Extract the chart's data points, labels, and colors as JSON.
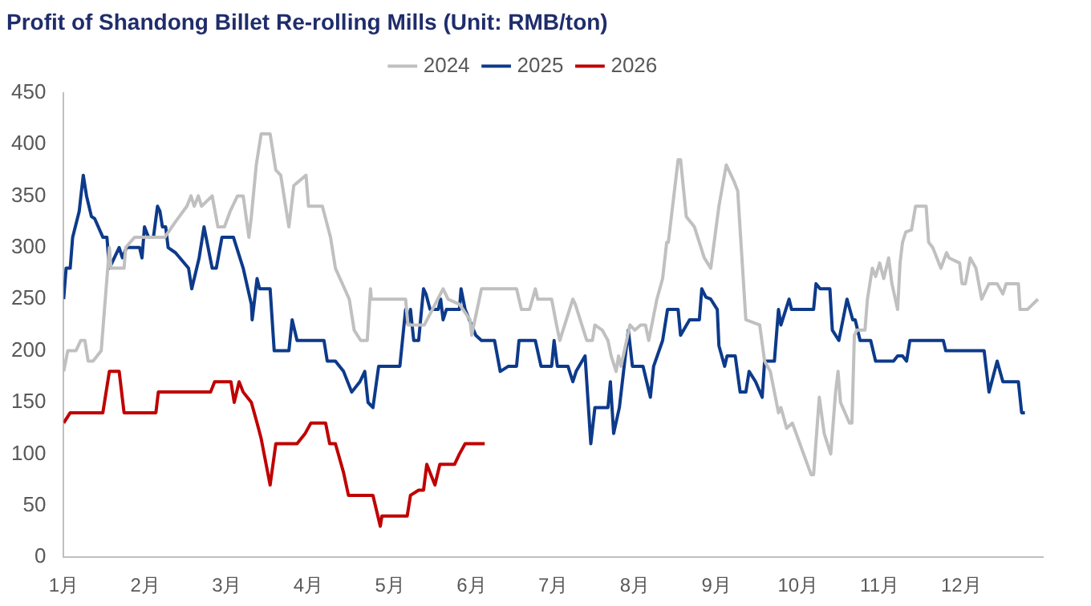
{
  "chart_data": {
    "type": "line",
    "title": "Profit of Shandong Billet Re-rolling Mills (Unit: RMB/ton)",
    "xlim": [
      1,
      13
    ],
    "xticks": [
      {
        "value": 1,
        "label": "1月"
      },
      {
        "value": 2,
        "label": "2月"
      },
      {
        "value": 3,
        "label": "3月"
      },
      {
        "value": 4,
        "label": "4月"
      },
      {
        "value": 5,
        "label": "5月"
      },
      {
        "value": 6,
        "label": "6月"
      },
      {
        "value": 7,
        "label": "7月"
      },
      {
        "value": 8,
        "label": "8月"
      },
      {
        "value": 9,
        "label": "9月"
      },
      {
        "value": 10,
        "label": "10月"
      },
      {
        "value": 11,
        "label": "11月"
      },
      {
        "value": 12,
        "label": "12月"
      }
    ],
    "ylim": [
      0,
      450
    ],
    "yticks": [
      0,
      50,
      100,
      150,
      200,
      250,
      300,
      350,
      400,
      450
    ],
    "grid": false,
    "legend": "top",
    "marker": "none",
    "line_style": "solid",
    "series": [
      {
        "name": "2024",
        "color": "#c0c0c0",
        "x": [
          1.0,
          1.05,
          1.15,
          1.21,
          1.26,
          1.3,
          1.36,
          1.46,
          1.51,
          1.56,
          1.58,
          1.74,
          1.76,
          1.87,
          2.11,
          2.24,
          2.37,
          2.51,
          2.56,
          2.6,
          2.65,
          2.69,
          2.82,
          2.89,
          2.97,
          3.04,
          3.13,
          3.2,
          3.27,
          3.3,
          3.36,
          3.42,
          3.53,
          3.6,
          3.66,
          3.76,
          3.82,
          3.97,
          4.0,
          4.17,
          4.27,
          4.33,
          4.5,
          4.56,
          4.64,
          4.72,
          4.76,
          4.77,
          5.19,
          5.22,
          5.42,
          5.65,
          5.71,
          5.85,
          5.98,
          6.0,
          6.12,
          6.55,
          6.61,
          6.71,
          6.78,
          6.81,
          6.98,
          7.04,
          7.08,
          7.24,
          7.27,
          7.41,
          7.48,
          7.51,
          7.6,
          7.67,
          7.71,
          7.77,
          7.8,
          7.83,
          7.94,
          8.0,
          8.07,
          8.13,
          8.17,
          8.27,
          8.34,
          8.39,
          8.41,
          8.53,
          8.56,
          8.63,
          8.73,
          8.85,
          8.93,
          9.03,
          9.12,
          9.15,
          9.21,
          9.26,
          9.36,
          9.53,
          9.59,
          9.66,
          9.76,
          9.79,
          9.86,
          9.93,
          10.16,
          10.19,
          10.26,
          10.32,
          10.4,
          10.46,
          10.49,
          10.52,
          10.63,
          10.66,
          10.69,
          10.72,
          10.82,
          10.85,
          10.91,
          10.95,
          11.0,
          11.05,
          11.11,
          11.15,
          11.22,
          11.25,
          11.28,
          11.32,
          11.39,
          11.44,
          11.57,
          11.6,
          11.65,
          11.75,
          11.82,
          11.85,
          11.98,
          12.01,
          12.05,
          12.11,
          12.18,
          12.25,
          12.34,
          12.44,
          12.51,
          12.55,
          12.7,
          12.72,
          12.81,
          12.94
        ],
        "values": [
          180,
          200,
          200,
          210,
          210,
          190,
          190,
          200,
          250,
          300,
          280,
          280,
          300,
          310,
          310,
          310,
          325,
          340,
          350,
          340,
          350,
          340,
          350,
          320,
          320,
          335,
          350,
          350,
          310,
          330,
          380,
          410,
          410,
          375,
          370,
          320,
          360,
          370,
          340,
          340,
          310,
          280,
          250,
          220,
          210,
          210,
          260,
          250,
          250,
          225,
          225,
          260,
          250,
          245,
          230,
          215,
          260,
          260,
          240,
          240,
          260,
          250,
          250,
          225,
          210,
          250,
          245,
          210,
          210,
          225,
          220,
          210,
          195,
          180,
          195,
          185,
          225,
          220,
          225,
          225,
          210,
          250,
          270,
          305,
          305,
          385,
          385,
          330,
          320,
          290,
          280,
          340,
          380,
          375,
          365,
          355,
          230,
          225,
          190,
          180,
          140,
          145,
          125,
          130,
          80,
          80,
          155,
          120,
          100,
          160,
          180,
          150,
          130,
          130,
          215,
          220,
          220,
          250,
          280,
          272,
          285,
          270,
          290,
          265,
          240,
          285,
          305,
          315,
          317,
          340,
          340,
          305,
          300,
          280,
          295,
          290,
          285,
          265,
          265,
          290,
          280,
          250,
          265,
          265,
          255,
          265,
          265,
          240,
          240,
          250
        ]
      },
      {
        "name": "2025",
        "color": "#0d3a8a",
        "x": [
          1.0,
          1.03,
          1.08,
          1.11,
          1.19,
          1.24,
          1.28,
          1.34,
          1.38,
          1.48,
          1.53,
          1.56,
          1.68,
          1.72,
          1.77,
          1.93,
          1.96,
          1.99,
          2.04,
          2.1,
          2.15,
          2.18,
          2.21,
          2.25,
          2.28,
          2.37,
          2.53,
          2.57,
          2.66,
          2.72,
          2.82,
          2.87,
          2.94,
          3.08,
          3.2,
          3.3,
          3.31,
          3.37,
          3.4,
          3.53,
          3.58,
          3.76,
          3.8,
          3.86,
          4.19,
          4.23,
          4.33,
          4.43,
          4.53,
          4.63,
          4.69,
          4.73,
          4.79,
          4.86,
          5.12,
          5.19,
          5.22,
          5.25,
          5.29,
          5.35,
          5.41,
          5.44,
          5.49,
          5.59,
          5.62,
          5.65,
          5.69,
          5.85,
          5.87,
          5.92,
          6.05,
          6.12,
          6.28,
          6.35,
          6.45,
          6.55,
          6.58,
          6.78,
          6.85,
          6.98,
          7.01,
          7.05,
          7.18,
          7.24,
          7.28,
          7.39,
          7.46,
          7.51,
          7.67,
          7.7,
          7.74,
          7.81,
          7.92,
          7.97,
          8.1,
          8.19,
          8.23,
          8.34,
          8.4,
          8.53,
          8.56,
          8.67,
          8.79,
          8.82,
          8.87,
          8.93,
          9.01,
          9.03,
          9.1,
          9.13,
          9.23,
          9.29,
          9.36,
          9.4,
          9.48,
          9.56,
          9.59,
          9.71,
          9.76,
          9.79,
          9.89,
          9.92,
          10.19,
          10.22,
          10.27,
          10.39,
          10.42,
          10.5,
          10.6,
          10.67,
          10.7,
          10.76,
          10.89,
          10.95,
          11.17,
          11.22,
          11.28,
          11.33,
          11.37,
          11.78,
          11.81,
          12.28,
          12.34,
          12.44,
          12.51,
          12.7,
          12.74,
          12.78
        ],
        "values": [
          250,
          280,
          280,
          310,
          335,
          370,
          350,
          330,
          328,
          310,
          310,
          280,
          300,
          290,
          300,
          300,
          290,
          320,
          310,
          310,
          340,
          335,
          320,
          320,
          300,
          295,
          280,
          260,
          290,
          320,
          280,
          280,
          310,
          310,
          280,
          245,
          230,
          270,
          260,
          260,
          200,
          200,
          230,
          210,
          210,
          190,
          190,
          180,
          160,
          170,
          180,
          150,
          145,
          185,
          185,
          240,
          226,
          240,
          210,
          210,
          260,
          255,
          240,
          240,
          250,
          230,
          240,
          240,
          260,
          240,
          215,
          210,
          210,
          180,
          185,
          185,
          210,
          210,
          185,
          185,
          210,
          185,
          185,
          170,
          180,
          195,
          110,
          145,
          145,
          170,
          120,
          145,
          220,
          185,
          185,
          155,
          185,
          210,
          240,
          240,
          215,
          230,
          230,
          260,
          252,
          250,
          240,
          205,
          185,
          195,
          195,
          160,
          160,
          180,
          170,
          155,
          190,
          190,
          240,
          225,
          250,
          240,
          240,
          265,
          260,
          260,
          220,
          210,
          250,
          230,
          230,
          210,
          210,
          190,
          190,
          195,
          195,
          190,
          210,
          210,
          200,
          200,
          160,
          190,
          170,
          170,
          140,
          140
        ]
      },
      {
        "name": "2026",
        "color": "#c00000",
        "x": [
          1.0,
          1.08,
          1.48,
          1.56,
          1.68,
          1.74,
          2.13,
          2.16,
          2.8,
          2.85,
          3.05,
          3.09,
          3.15,
          3.2,
          3.3,
          3.37,
          3.42,
          3.53,
          3.6,
          3.86,
          3.96,
          4.03,
          4.21,
          4.26,
          4.33,
          4.43,
          4.49,
          4.79,
          4.88,
          4.9,
          5.21,
          5.25,
          5.35,
          5.41,
          5.45,
          5.5,
          5.55,
          5.61,
          5.79,
          5.85,
          5.92,
          6.16
        ],
        "values": [
          130,
          140,
          140,
          180,
          180,
          140,
          140,
          160,
          160,
          170,
          170,
          150,
          170,
          160,
          150,
          130,
          115,
          70,
          110,
          110,
          120,
          130,
          130,
          110,
          110,
          82,
          60,
          60,
          30,
          40,
          40,
          60,
          65,
          65,
          90,
          80,
          70,
          90,
          90,
          100,
          110,
          110
        ]
      }
    ]
  }
}
